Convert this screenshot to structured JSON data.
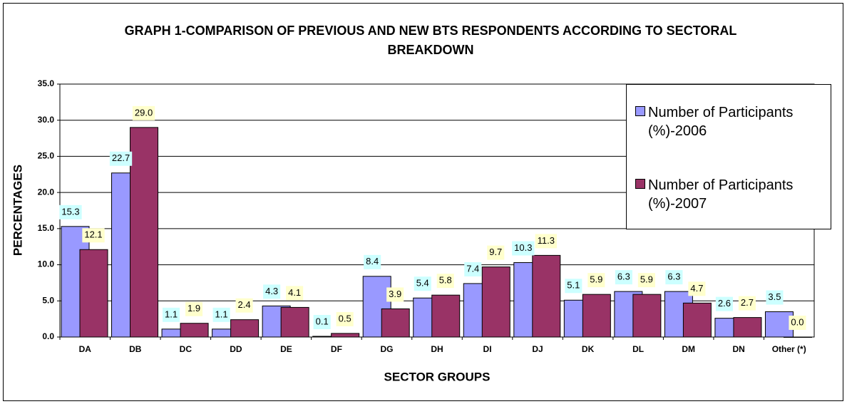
{
  "chart_data": {
    "type": "bar",
    "title": "GRAPH 1-COMPARISON OF PREVIOUS AND NEW BTS RESPONDENTS ACCORDING TO SECTORAL BREAKDOWN",
    "x_label": "SECTOR GROUPS",
    "y_label": "PERCENTAGES",
    "categories": [
      "DA",
      "DB",
      "DC",
      "DD",
      "DE",
      "DF",
      "DG",
      "DH",
      "DI",
      "DJ",
      "DK",
      "DL",
      "DM",
      "DN",
      "Other (*)"
    ],
    "series": [
      {
        "name": "Number of Participants (%)-2006",
        "color": "#9999ff",
        "label_background": "#ccffff",
        "values": [
          15.3,
          22.7,
          1.1,
          1.1,
          4.3,
          0.1,
          8.4,
          5.4,
          7.4,
          10.3,
          5.1,
          6.3,
          6.3,
          2.6,
          3.5
        ],
        "value_labels": [
          "15.3",
          "22.7",
          "1.1",
          "1.1",
          "4.3",
          "0.1",
          "8.4",
          "5.4",
          "7.4",
          "10.3",
          "5.1",
          "6.3",
          "6.3",
          "2.6",
          "3.5"
        ]
      },
      {
        "name": "Number of Participants (%)-2007",
        "color": "#993366",
        "label_background": "#ffffcc",
        "values": [
          12.1,
          29.0,
          1.9,
          2.4,
          4.1,
          0.5,
          3.9,
          5.8,
          9.7,
          11.3,
          5.9,
          5.9,
          4.7,
          2.7,
          0.0
        ],
        "value_labels": [
          "12.1",
          "29.0",
          "1.9",
          "2.4",
          "4.1",
          "0.5",
          "3.9",
          "5.8",
          "9.7",
          "11.3",
          "5.9",
          "5.9",
          "4.7",
          "2.7",
          "0.0"
        ]
      }
    ],
    "ylim": [
      0,
      35
    ],
    "yticks": [
      {
        "value": 0,
        "label": "0.0"
      },
      {
        "value": 5,
        "label": "5.0"
      },
      {
        "value": 10,
        "label": "10.0"
      },
      {
        "value": 15,
        "label": "15.0"
      },
      {
        "value": 20,
        "label": "20.0"
      },
      {
        "value": 25,
        "label": "25.0"
      },
      {
        "value": 30,
        "label": "30.0"
      },
      {
        "value": 35,
        "label": "35.0"
      }
    ],
    "grid": true,
    "legend": "top-right"
  }
}
